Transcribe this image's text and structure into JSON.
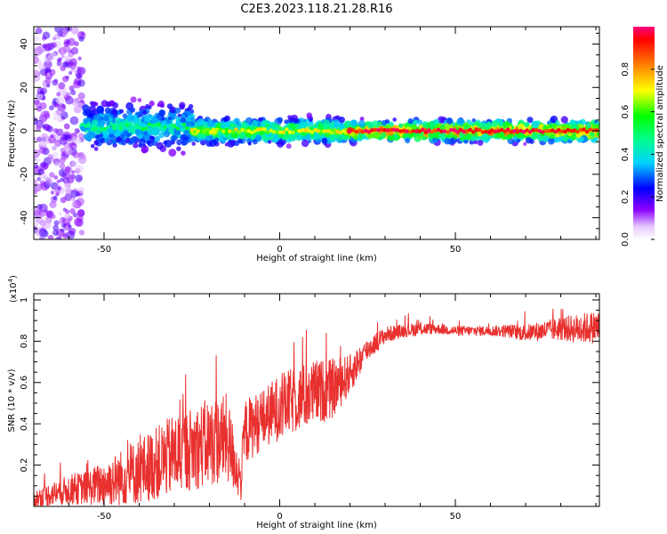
{
  "figure": {
    "title": "C2E3.2023.118.21.28.R16"
  },
  "chart_data": [
    {
      "type": "heatmap",
      "xlabel": "Height of straight line (km)",
      "ylabel": "Frequency (Hz)",
      "xlim": [
        -70,
        91
      ],
      "ylim": [
        -50,
        48
      ],
      "xticks": [
        -50,
        0,
        50
      ],
      "yticks": [
        -40,
        -20,
        0,
        20,
        40
      ],
      "colorbar": {
        "label": "Normalized spectral amplitude",
        "range": [
          0.0,
          1.0
        ],
        "ticks": [
          0.0,
          0.2,
          0.4,
          0.6,
          0.8
        ]
      },
      "features": [
        {
          "x_start": -70,
          "x_end": -56,
          "f_min": -50,
          "f_max": 48,
          "amplitude": 0.1
        },
        {
          "x_start": -56,
          "x_end": -25,
          "f_min": -7,
          "f_max": 11,
          "amplitude": 0.4
        },
        {
          "x_start": -25,
          "x_end": 20,
          "f_min": -5,
          "f_max": 5,
          "amplitude": 0.6
        },
        {
          "x_start": 20,
          "x_end": 91,
          "f_min": -4,
          "f_max": 4,
          "amplitude": 0.85
        }
      ]
    },
    {
      "type": "line",
      "xlabel": "Height of straight line (km)",
      "ylabel": "SNR (10 * v/v)",
      "yscale_label": "(x10",
      "yscale_exponent": "4",
      "xlim": [
        -70,
        91
      ],
      "ylim": [
        0.0,
        1.03
      ],
      "xticks": [
        -50,
        0,
        50
      ],
      "yticks": [
        0.2,
        0.4,
        0.6,
        0.8,
        1.0
      ],
      "series": [
        {
          "color": "#e8302e",
          "x": [
            -70,
            -65,
            -60,
            -55,
            -50,
            -45,
            -40,
            -35,
            -30,
            -25,
            -20,
            -15,
            -11,
            -10,
            -5,
            0,
            5,
            10,
            15,
            20,
            25,
            30,
            35,
            40,
            45,
            50,
            55,
            60,
            65,
            70,
            75,
            80,
            85,
            91
          ],
          "y": [
            0.03,
            0.06,
            0.08,
            0.09,
            0.11,
            0.14,
            0.17,
            0.21,
            0.25,
            0.28,
            0.31,
            0.33,
            0.12,
            0.36,
            0.42,
            0.48,
            0.52,
            0.55,
            0.57,
            0.64,
            0.76,
            0.83,
            0.85,
            0.86,
            0.86,
            0.85,
            0.85,
            0.85,
            0.85,
            0.84,
            0.85,
            0.86,
            0.86,
            0.87
          ],
          "spread": [
            0.06,
            0.07,
            0.09,
            0.1,
            0.14,
            0.17,
            0.2,
            0.22,
            0.25,
            0.25,
            0.27,
            0.27,
            0.12,
            0.2,
            0.18,
            0.2,
            0.2,
            0.2,
            0.18,
            0.12,
            0.07,
            0.05,
            0.04,
            0.04,
            0.03,
            0.03,
            0.03,
            0.03,
            0.04,
            0.05,
            0.06,
            0.07,
            0.09,
            0.1
          ]
        }
      ]
    }
  ]
}
